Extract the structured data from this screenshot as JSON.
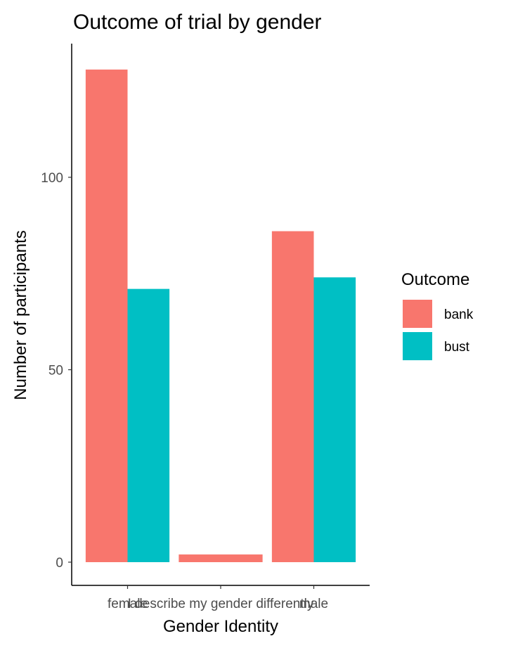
{
  "chart_data": {
    "type": "bar",
    "title": "Outcome of trial by gender",
    "xlabel": "Gender Identity",
    "ylabel": "Number of participants",
    "categories": [
      "female",
      "I describe my gender differently",
      "male"
    ],
    "series": [
      {
        "name": "bank",
        "values": [
          128,
          2,
          86
        ],
        "color": "#F8766D"
      },
      {
        "name": "bust",
        "values": [
          71,
          null,
          74
        ],
        "color": "#00BFC4"
      }
    ],
    "yticks": [
      0,
      50,
      100
    ],
    "ylim": [
      0,
      132
    ],
    "grid": false,
    "legend": {
      "title": "Outcome",
      "position": "right"
    }
  }
}
